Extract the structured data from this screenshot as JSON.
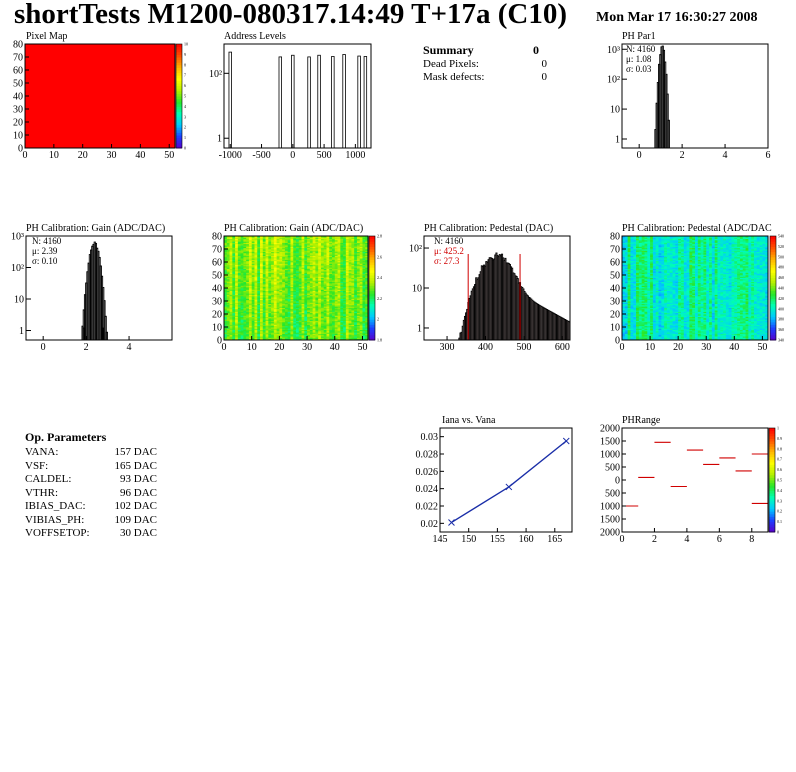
{
  "header": {
    "title": "shortTests M1200-080317.14:49 T+17a (C10)",
    "date": "Mon Mar 17 16:30:27 2008"
  },
  "summary": {
    "heading": "Summary",
    "heading_value": "0",
    "rows": [
      {
        "label": "Dead Pixels:",
        "value": "0"
      },
      {
        "label": "Mask defects:",
        "value": "0"
      }
    ]
  },
  "params": {
    "heading": "Op. Parameters",
    "rows": [
      {
        "label": "VANA:",
        "value": "157 DAC"
      },
      {
        "label": "VSF:",
        "value": "165 DAC"
      },
      {
        "label": "CALDEL:",
        "value": "93 DAC"
      },
      {
        "label": "VTHR:",
        "value": "96 DAC"
      },
      {
        "label": "IBIAS_DAC:",
        "value": "102 DAC"
      },
      {
        "label": "VIBIAS_PH:",
        "value": "109 DAC"
      },
      {
        "label": "VOFFSETOP:",
        "value": "30 DAC"
      }
    ]
  },
  "chart_data": [
    {
      "id": "pixel-map",
      "type": "heatmap",
      "title": "Pixel Map",
      "xlim": [
        0,
        52
      ],
      "ylim": [
        0,
        80
      ],
      "xticks": [
        0,
        10,
        20,
        30,
        40,
        50
      ],
      "yticks": [
        0,
        10,
        20,
        30,
        40,
        50,
        60,
        70,
        80
      ],
      "fill": "uniform",
      "fill_color": "#ff0000",
      "palette": [
        "#5a00c8",
        "#1e3cff",
        "#00c8ff",
        "#00ffb4",
        "#28e628",
        "#b4f000",
        "#ffff00",
        "#ffb400",
        "#ff5000",
        "#ff0000"
      ],
      "zticks": [
        "0",
        "1",
        "2",
        "3",
        "4",
        "5",
        "6",
        "7",
        "8",
        "9",
        "10"
      ]
    },
    {
      "id": "address-levels",
      "type": "bar",
      "title": "Address Levels",
      "xlim": [
        -1100,
        1250
      ],
      "ylim": [
        0.5,
        800
      ],
      "yscale": "log",
      "xticks": [
        -1000,
        -500,
        0,
        500,
        1000
      ],
      "yticks": [
        "1",
        "10²"
      ],
      "peaks": [
        {
          "x": -1000,
          "y": 450
        },
        {
          "x": -200,
          "y": 320
        },
        {
          "x": 0,
          "y": 360
        },
        {
          "x": 260,
          "y": 320
        },
        {
          "x": 420,
          "y": 360
        },
        {
          "x": 640,
          "y": 330
        },
        {
          "x": 820,
          "y": 380
        },
        {
          "x": 1060,
          "y": 340
        },
        {
          "x": 1160,
          "y": 330
        }
      ]
    },
    {
      "id": "ph-par1",
      "type": "bar",
      "title": "PH Par1",
      "xlim": [
        -0.8,
        6
      ],
      "ylim": [
        0.5,
        1500
      ],
      "yscale": "log",
      "xticks": [
        0,
        2,
        4,
        6
      ],
      "yticks": [
        "1",
        "10",
        "10²",
        "10³"
      ],
      "stats": {
        "N": "N: 4160",
        "mean": "μ: 1.08",
        "sigma": "σ: 0.03"
      },
      "peak_center": 1.08,
      "peak_width": 0.03,
      "peak_max": 1200
    },
    {
      "id": "gain-1d",
      "type": "bar",
      "title": "PH Calibration: Gain (ADC/DAC)",
      "xlim": [
        -0.8,
        6
      ],
      "ylim": [
        0.5,
        1000
      ],
      "yscale": "log",
      "xticks": [
        0,
        2,
        4
      ],
      "yticks": [
        "1",
        "10",
        "10²",
        "10³"
      ],
      "stats": {
        "N": "N: 4160",
        "mean": "μ: 2.39",
        "sigma": "σ: 0.10"
      },
      "peak_center": 2.39,
      "peak_width": 0.1,
      "peak_max": 600
    },
    {
      "id": "gain-2d",
      "type": "heatmap",
      "title": "PH Calibration: Gain (ADC/DAC)",
      "xlim": [
        0,
        52
      ],
      "ylim": [
        0,
        80
      ],
      "xticks": [
        0,
        10,
        20,
        30,
        40,
        50
      ],
      "yticks": [
        0,
        10,
        20,
        30,
        40,
        50,
        60,
        70,
        80
      ],
      "palette": [
        "#5a00c8",
        "#1e3cff",
        "#00c8ff",
        "#00ffb4",
        "#28e628",
        "#b4f000",
        "#ffff00",
        "#ffb400",
        "#ff5000",
        "#ff0000"
      ],
      "zticks": [
        "1.8",
        "2",
        "2.2",
        "2.4",
        "2.6",
        "2.8"
      ],
      "value_range": [
        0.42,
        0.62
      ]
    },
    {
      "id": "pedestal-1d",
      "type": "bar",
      "title": "PH Calibration: Pedestal (DAC)",
      "xlim": [
        240,
        620
      ],
      "ylim": [
        0.5,
        200
      ],
      "yscale": "log",
      "xticks": [
        300,
        400,
        500,
        600
      ],
      "yticks": [
        "1",
        "10",
        "10²"
      ],
      "stats": {
        "N": "N: 4160",
        "mean": "μ: 425.2",
        "sigma": "σ: 27.3"
      },
      "peak_center": 425.2,
      "peak_width": 27.3,
      "peak_max": 60,
      "cut_lines": [
        355,
        490
      ]
    },
    {
      "id": "pedestal-2d",
      "type": "heatmap",
      "title": "PH Calibration: Pedestal (ADC/DAC",
      "xlim": [
        0,
        52
      ],
      "ylim": [
        0,
        80
      ],
      "xticks": [
        0,
        10,
        20,
        30,
        40,
        50
      ],
      "yticks": [
        0,
        10,
        20,
        30,
        40,
        50,
        60,
        70,
        80
      ],
      "palette": [
        "#5a00c8",
        "#1e3cff",
        "#00c8ff",
        "#00ffb4",
        "#28e628",
        "#b4f000",
        "#ffff00",
        "#ffb400",
        "#ff5000",
        "#ff0000"
      ],
      "zticks": [
        "340",
        "360",
        "380",
        "400",
        "420",
        "440",
        "460",
        "480",
        "500",
        "520",
        "540"
      ],
      "value_range": [
        0.2,
        0.45
      ]
    },
    {
      "id": "iana-vana",
      "type": "line",
      "title": "Iana vs. Vana",
      "xlim": [
        145,
        168
      ],
      "ylim": [
        0.019,
        0.031
      ],
      "xticks": [
        145,
        150,
        155,
        160,
        165
      ],
      "yticks": [
        0.02,
        0.022,
        0.024,
        0.026,
        0.028,
        0.03
      ],
      "xtick_labels": [
        "145",
        "150",
        "155",
        "160",
        "165"
      ],
      "ytick_labels": [
        "0.02",
        "0.022",
        "0.024",
        "0.026",
        "0.028",
        "0.03"
      ],
      "x": [
        147,
        157,
        167
      ],
      "y": [
        0.0201,
        0.0242,
        0.0295
      ]
    },
    {
      "id": "phrange",
      "type": "scatter",
      "title": "PHRange",
      "xlim": [
        0,
        9
      ],
      "ylim": [
        -2000,
        2000
      ],
      "xticks": [
        0,
        2,
        4,
        6,
        8
      ],
      "yticks": [
        -2000,
        -1500,
        -1000,
        -500,
        0,
        500,
        1000,
        1500,
        2000
      ],
      "ytick_labels": [
        "2000",
        "1500",
        "1000",
        "500",
        "0",
        "500",
        "1000",
        "1500",
        "2000"
      ],
      "palette": [
        "#5a00c8",
        "#1e3cff",
        "#00c8ff",
        "#00ffb4",
        "#28e628",
        "#b4f000",
        "#ffff00",
        "#ffb400",
        "#ff5000",
        "#ff0000"
      ],
      "zticks": [
        "0",
        "0.1",
        "0.2",
        "0.3",
        "0.4",
        "0.5",
        "0.6",
        "0.7",
        "0.8",
        "0.9",
        "1"
      ],
      "segments": [
        {
          "x": 0.5,
          "y": -1000
        },
        {
          "x": 1.5,
          "y": 100
        },
        {
          "x": 2.5,
          "y": 1450
        },
        {
          "x": 3.5,
          "y": -250
        },
        {
          "x": 4.5,
          "y": 1150
        },
        {
          "x": 5.5,
          "y": 600
        },
        {
          "x": 6.5,
          "y": 850
        },
        {
          "x": 7.5,
          "y": 350
        },
        {
          "x": 8.5,
          "y": 1000
        },
        {
          "x": 8.5,
          "y": -900
        }
      ]
    }
  ]
}
